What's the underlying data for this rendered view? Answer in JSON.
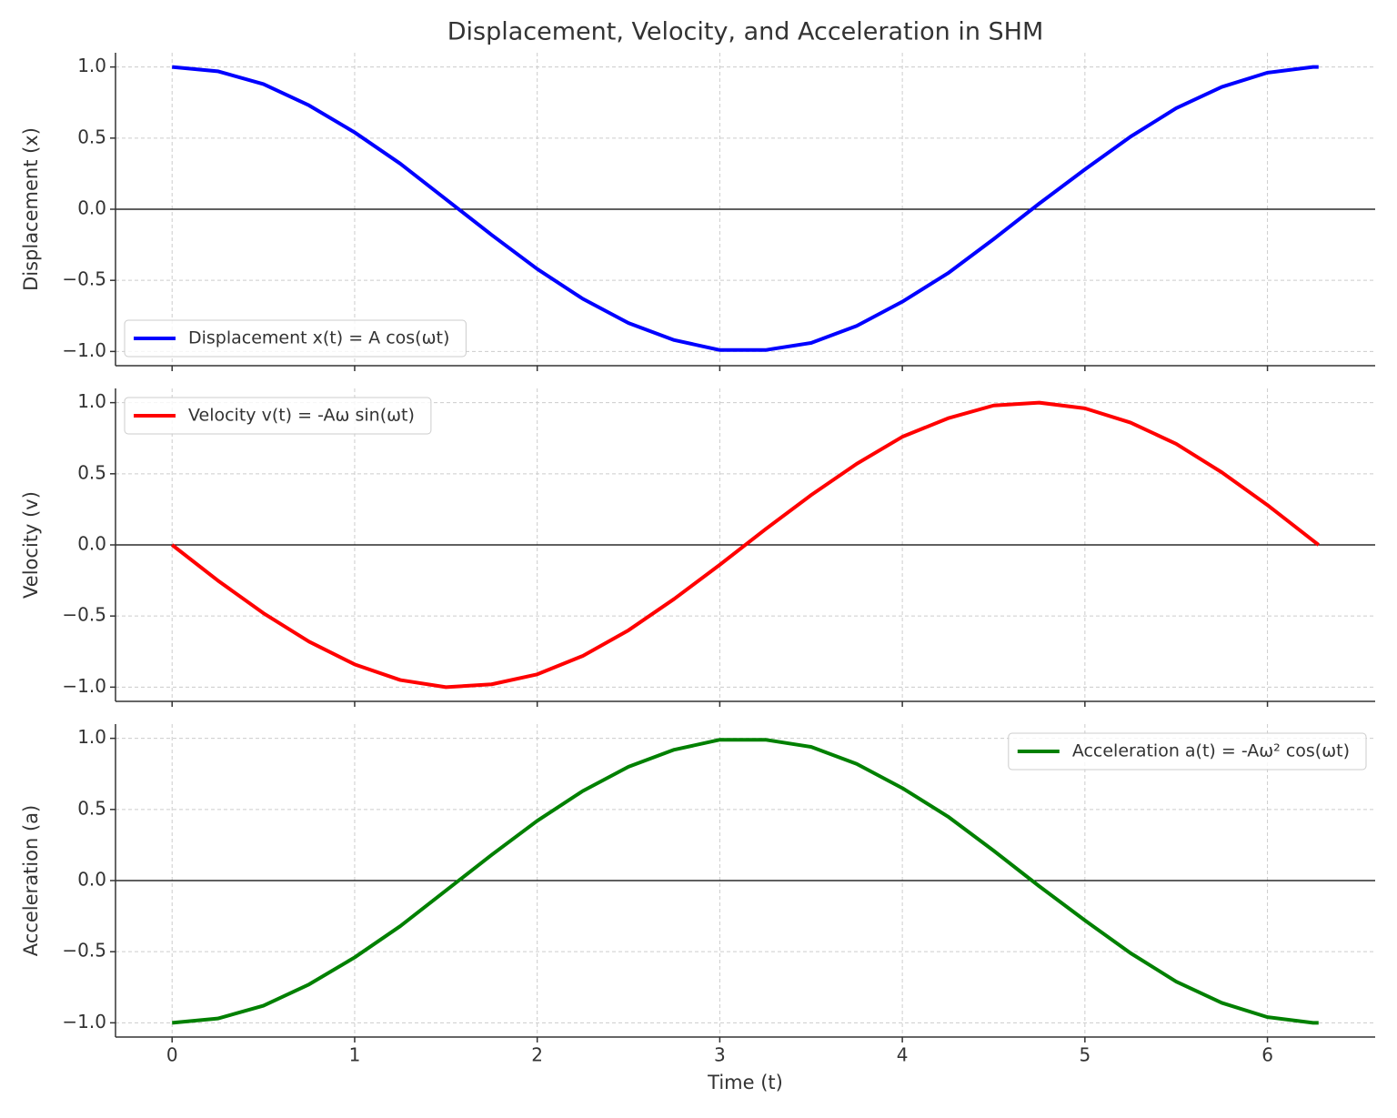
{
  "chart_data": [
    {
      "type": "line",
      "title": "Displacement, Velocity, and Acceleration in SHM",
      "ylabel": "Displacement (x)",
      "x": [
        0,
        0.25,
        0.5,
        0.75,
        1,
        1.25,
        1.5,
        1.75,
        2,
        2.25,
        2.5,
        2.75,
        3,
        3.25,
        3.5,
        3.75,
        4,
        4.25,
        4.5,
        4.75,
        5,
        5.25,
        5.5,
        5.75,
        6,
        6.25,
        6.28
      ],
      "series": [
        {
          "name": "Displacement x(t) = A cos(ωt)",
          "color": "#0000ff",
          "values": [
            1,
            0.97,
            0.88,
            0.73,
            0.54,
            0.32,
            0.07,
            -0.18,
            -0.42,
            -0.63,
            -0.8,
            -0.92,
            -0.99,
            -0.99,
            -0.94,
            -0.82,
            -0.65,
            -0.45,
            -0.21,
            0.04,
            0.28,
            0.51,
            0.71,
            0.86,
            0.96,
            1,
            1
          ]
        }
      ],
      "xlim": [
        -0.31,
        6.59
      ],
      "xticks": [
        0,
        1,
        2,
        3,
        4,
        5,
        6
      ],
      "ylim": [
        -1.1,
        1.1
      ],
      "yticks": [
        {
          "value": -1,
          "label": "−1.0"
        },
        {
          "value": -0.5,
          "label": "−0.5"
        },
        {
          "value": 0,
          "label": "0.0"
        },
        0.5,
        {
          "value": 1,
          "label": "1.0"
        }
      ],
      "grid": true,
      "zero_line": true,
      "legend": "lower left"
    },
    {
      "type": "line",
      "ylabel": "Velocity (v)",
      "x": [
        0,
        0.25,
        0.5,
        0.75,
        1,
        1.25,
        1.5,
        1.75,
        2,
        2.25,
        2.5,
        2.75,
        3,
        3.25,
        3.5,
        3.75,
        4,
        4.25,
        4.5,
        4.75,
        5,
        5.25,
        5.5,
        5.75,
        6,
        6.25,
        6.28
      ],
      "series": [
        {
          "name": "Velocity v(t) = -Aω sin(ωt)",
          "color": "#ff0000",
          "values": [
            0,
            -0.25,
            -0.48,
            -0.68,
            -0.84,
            -0.95,
            -1,
            -0.98,
            -0.91,
            -0.78,
            -0.6,
            -0.38,
            -0.14,
            0.11,
            0.35,
            0.57,
            0.76,
            0.89,
            0.98,
            1,
            0.96,
            0.86,
            0.71,
            0.51,
            0.28,
            0.03,
            0
          ]
        }
      ],
      "xlim": [
        -0.31,
        6.59
      ],
      "xticks": [
        0,
        1,
        2,
        3,
        4,
        5,
        6
      ],
      "ylim": [
        -1.1,
        1.1
      ],
      "yticks": [
        {
          "value": -1,
          "label": "−1.0"
        },
        {
          "value": -0.5,
          "label": "−0.5"
        },
        {
          "value": 0,
          "label": "0.0"
        },
        0.5,
        {
          "value": 1,
          "label": "1.0"
        }
      ],
      "grid": true,
      "zero_line": true,
      "legend": "upper left"
    },
    {
      "type": "line",
      "ylabel": "Acceleration (a)",
      "xlabel": "Time (t)",
      "x": [
        0,
        0.25,
        0.5,
        0.75,
        1,
        1.25,
        1.5,
        1.75,
        2,
        2.25,
        2.5,
        2.75,
        3,
        3.25,
        3.5,
        3.75,
        4,
        4.25,
        4.5,
        4.75,
        5,
        5.25,
        5.5,
        5.75,
        6,
        6.25,
        6.28
      ],
      "series": [
        {
          "name": "Acceleration a(t) = -Aω² cos(ωt)",
          "color": "#008000",
          "values": [
            -1,
            -0.97,
            -0.88,
            -0.73,
            -0.54,
            -0.32,
            -0.07,
            0.18,
            0.42,
            0.63,
            0.8,
            0.92,
            0.99,
            0.99,
            0.94,
            0.82,
            0.65,
            0.45,
            0.21,
            -0.04,
            -0.28,
            -0.51,
            -0.71,
            -0.86,
            -0.96,
            -1,
            -1
          ]
        }
      ],
      "xlim": [
        -0.31,
        6.59
      ],
      "xticks": [
        0,
        1,
        2,
        3,
        4,
        5,
        6
      ],
      "ylim": [
        -1.1,
        1.1
      ],
      "yticks": [
        {
          "value": -1,
          "label": "−1.0"
        },
        {
          "value": -0.5,
          "label": "−0.5"
        },
        {
          "value": 0,
          "label": "0.0"
        },
        0.5,
        {
          "value": 1,
          "label": "1.0"
        }
      ],
      "grid": true,
      "zero_line": true,
      "legend": "upper right"
    }
  ]
}
